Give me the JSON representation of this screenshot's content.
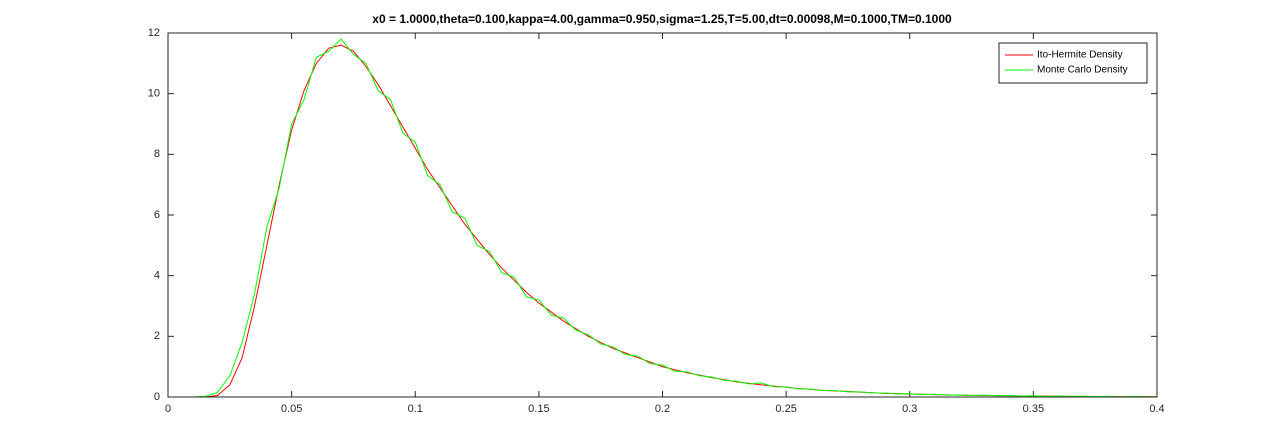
{
  "chart_data": {
    "type": "line",
    "title": "x0 = 1.0000,theta=0.100,kappa=4.00,gamma=0.950,sigma=1.25,T=5.00,dt=0.00098,M=0.1000,TM=0.1000",
    "x": [
      0,
      0.005,
      0.01,
      0.015,
      0.02,
      0.025,
      0.03,
      0.035,
      0.04,
      0.045,
      0.05,
      0.055,
      0.06,
      0.065,
      0.07,
      0.075,
      0.08,
      0.085,
      0.09,
      0.095,
      0.1,
      0.105,
      0.11,
      0.115,
      0.12,
      0.125,
      0.13,
      0.135,
      0.14,
      0.145,
      0.15,
      0.155,
      0.16,
      0.165,
      0.17,
      0.175,
      0.18,
      0.185,
      0.19,
      0.195,
      0.2,
      0.205,
      0.21,
      0.215,
      0.22,
      0.225,
      0.23,
      0.235,
      0.24,
      0.245,
      0.25,
      0.255,
      0.26,
      0.265,
      0.27,
      0.275,
      0.28,
      0.285,
      0.29,
      0.295,
      0.3,
      0.305,
      0.31,
      0.315,
      0.32,
      0.325,
      0.33,
      0.335,
      0.34,
      0.345,
      0.35,
      0.355,
      0.36,
      0.365,
      0.37,
      0.375,
      0.38,
      0.385,
      0.39,
      0.395,
      0.4
    ],
    "series": [
      {
        "name": "Ito-Hermite Density",
        "color": "#ff0000",
        "values": [
          0,
          0,
          0,
          0,
          0.05,
          0.4,
          1.3,
          3.0,
          5.0,
          7.0,
          8.8,
          10.1,
          11.0,
          11.5,
          11.6,
          11.4,
          10.9,
          10.3,
          9.6,
          8.9,
          8.2,
          7.5,
          6.9,
          6.3,
          5.7,
          5.2,
          4.7,
          4.25,
          3.85,
          3.45,
          3.1,
          2.8,
          2.5,
          2.25,
          2.0,
          1.8,
          1.6,
          1.45,
          1.3,
          1.15,
          1.0,
          0.9,
          0.8,
          0.72,
          0.64,
          0.57,
          0.5,
          0.45,
          0.4,
          0.36,
          0.32,
          0.28,
          0.25,
          0.22,
          0.2,
          0.18,
          0.16,
          0.14,
          0.12,
          0.11,
          0.1,
          0.09,
          0.08,
          0.07,
          0.06,
          0.055,
          0.05,
          0.045,
          0.04,
          0.035,
          0.03,
          0.028,
          0.025,
          0.022,
          0.02,
          0.018,
          0.016,
          0.014,
          0.012,
          0.011,
          0.01
        ]
      },
      {
        "name": "Monte Carlo Density",
        "color": "#00ff00",
        "values": [
          0,
          0,
          0,
          0.02,
          0.15,
          0.7,
          1.8,
          3.4,
          5.6,
          6.9,
          9.0,
          9.8,
          11.2,
          11.4,
          11.8,
          11.3,
          11.0,
          10.1,
          9.8,
          8.7,
          8.4,
          7.3,
          7.0,
          6.1,
          5.9,
          5.0,
          4.8,
          4.1,
          3.95,
          3.3,
          3.2,
          2.7,
          2.6,
          2.2,
          2.05,
          1.75,
          1.65,
          1.4,
          1.35,
          1.1,
          1.05,
          0.85,
          0.83,
          0.7,
          0.66,
          0.55,
          0.52,
          0.43,
          0.46,
          0.34,
          0.33,
          0.27,
          0.26,
          0.21,
          0.21,
          0.17,
          0.17,
          0.13,
          0.13,
          0.1,
          0.11,
          0.08,
          0.09,
          0.06,
          0.07,
          0.05,
          0.06,
          0.04,
          0.05,
          0.03,
          0.04,
          0.02,
          0.03,
          0.02,
          0.025,
          0.015,
          0.02,
          0.01,
          0.015,
          0.01,
          0.01
        ]
      }
    ],
    "xlim": [
      0,
      0.4
    ],
    "xticks": [
      0,
      0.05,
      0.1,
      0.15,
      0.2,
      0.25,
      0.3,
      0.35,
      0.4
    ],
    "ylim": [
      0,
      12
    ],
    "yticks": [
      0,
      2,
      4,
      6,
      8,
      10,
      12
    ],
    "legend": "top-right"
  }
}
